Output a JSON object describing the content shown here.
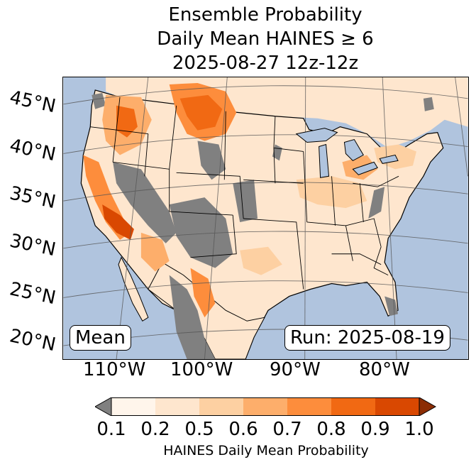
{
  "title": {
    "line1": "Ensemble Probability",
    "line2": "Daily Mean HAINES ≥ 6",
    "line3": "2025-08-27 12z-12z"
  },
  "map": {
    "lat_labels": [
      "45°N",
      "40°N",
      "35°N",
      "30°N",
      "25°N",
      "20°N"
    ],
    "lon_labels": [
      "110°W",
      "100°W",
      "90°W",
      "80°W"
    ],
    "mean_label": "Mean",
    "run_label": "Run: 2025-08-19",
    "colors": {
      "ocean": "#b0c4de",
      "no_data_gray": "#808080",
      "low": "#fff5eb",
      "bin_02_05": "#fee6ce",
      "bin_05_06": "#fdd0a2",
      "bin_06_07": "#fdae6b",
      "bin_07_08": "#fd8d3c",
      "bin_08_09": "#f16913",
      "bin_09_10": "#d94801",
      "over": "#8c2d04"
    }
  },
  "colorbar": {
    "ticks": [
      "0.1",
      "0.2",
      "0.5",
      "0.6",
      "0.7",
      "0.8",
      "0.9",
      "1.0"
    ],
    "label": "HAINES Daily Mean Probability",
    "under_color": "#808080",
    "bins": [
      "#fff5eb",
      "#fee6ce",
      "#fdd0a2",
      "#fdae6b",
      "#fd8d3c",
      "#f16913",
      "#d94801"
    ],
    "over_color": "#8c2d04"
  }
}
